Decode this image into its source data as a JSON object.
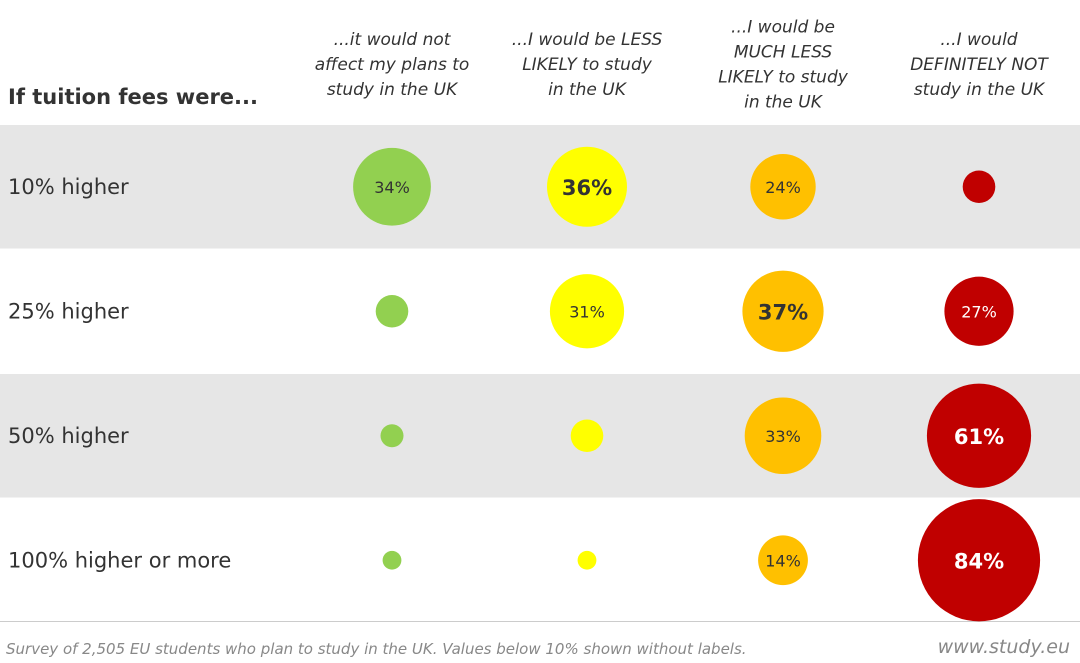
{
  "chart_data": {
    "type": "bubble-matrix",
    "title": "If tuition fees were...",
    "columns": [
      "...it would not affect my plans to study in the UK",
      "...I would be LESS LIKELY to study in the UK",
      "...I would be MUCH LESS LIKELY to study in the UK",
      "...I would DEFINITELY NOT study in the UK"
    ],
    "column_lines": [
      [
        "...it would not",
        "affect my plans to",
        "study in the UK"
      ],
      [
        "...I would be LESS",
        "LIKELY to study",
        "in the UK"
      ],
      [
        "...I would be",
        "MUCH LESS",
        "LIKELY to study",
        "in the UK"
      ],
      [
        "...I would",
        "DEFINITELY NOT",
        "study in the UK"
      ]
    ],
    "rows": [
      "10% higher",
      "25% higher",
      "50% higher",
      "100% higher or more"
    ],
    "values": [
      [
        34,
        36,
        24,
        6
      ],
      [
        6,
        31,
        37,
        27
      ],
      [
        3,
        6,
        33,
        61
      ],
      [
        2,
        2,
        14,
        84
      ]
    ],
    "labels": [
      [
        "34%",
        "36%",
        "24%",
        ""
      ],
      [
        "",
        "31%",
        "37%",
        "27%"
      ],
      [
        "",
        "",
        "33%",
        "61%"
      ],
      [
        "",
        "",
        "14%",
        "84%"
      ]
    ],
    "bold_labels": [
      [
        false,
        true,
        false,
        false
      ],
      [
        false,
        false,
        true,
        false
      ],
      [
        false,
        false,
        false,
        true
      ],
      [
        false,
        false,
        false,
        true
      ]
    ],
    "colors": [
      "#92d050",
      "#ffff00",
      "#ffc000",
      "#c00000"
    ],
    "label_colors": [
      "#333333",
      "#333333",
      "#333333",
      "#ffffff"
    ],
    "row_backgrounds": [
      "#e6e6e6",
      "#ffffff",
      "#e6e6e6",
      "#ffffff"
    ]
  },
  "footer": {
    "note": "Survey of 2,505 EU students who plan to study in the UK. Values below 10% shown without labels.",
    "site": "www.study.eu"
  }
}
